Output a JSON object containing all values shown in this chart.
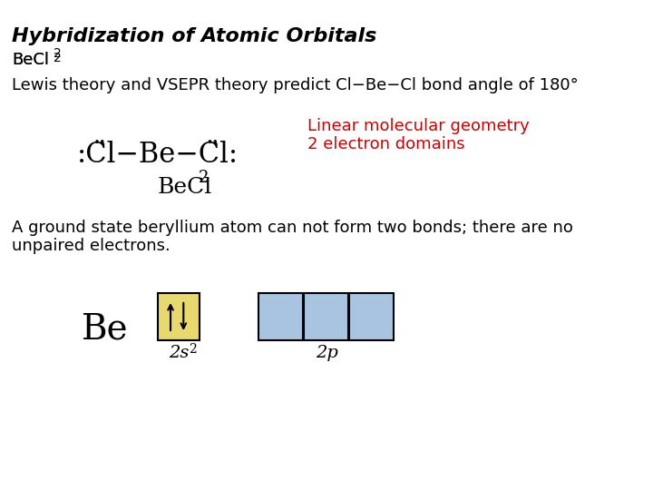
{
  "title": "Hybridization of Atomic Orbitals",
  "becl2_label": "BeCl",
  "becl2_subscript": "2",
  "lewis_line": "Lewis theory and VSEPR theory predict Cl−Be−Cl bond angle of 180°",
  "red_line1": "2 electron domains",
  "red_line2": "Linear molecular geometry",
  "lewis_formula_main": ":C̈l−Be−C̈l:",
  "lewis_formula_sub": "BeCl",
  "lewis_formula_sub2": "2",
  "ground_state_text1": "A ground state beryllium atom can not form two bonds; there are no",
  "ground_state_text2": "unpaired electrons.",
  "be_label": "Be",
  "orbital_2s_label": "2s",
  "orbital_2s_sup": "2",
  "orbital_2p_label": "2p",
  "box_2s_color": "#e8d870",
  "box_2p_color": "#a8c4e0",
  "bg_color": "#ffffff",
  "text_color": "#000000",
  "red_color": "#cc0000"
}
